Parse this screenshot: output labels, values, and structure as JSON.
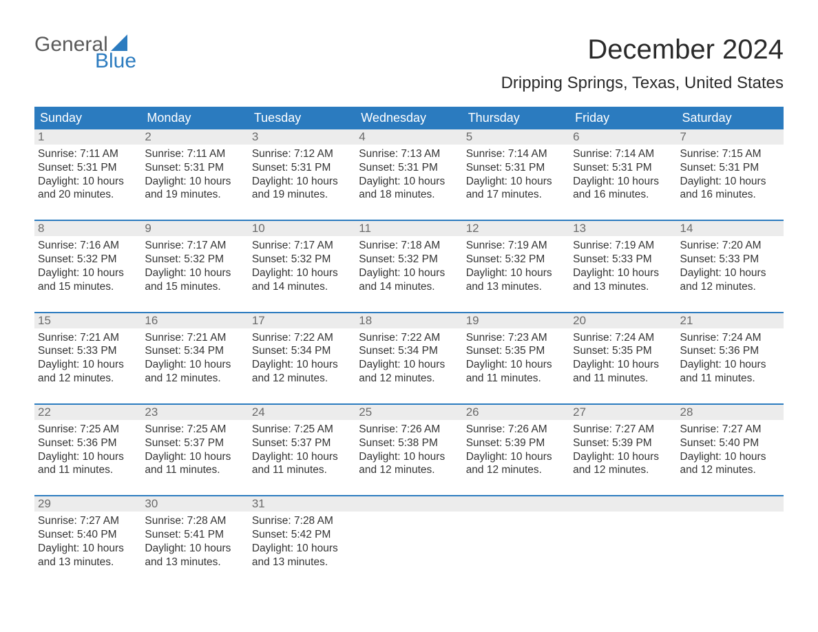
{
  "logo": {
    "top": "General",
    "bottom": "Blue",
    "sail_color": "#2b7bbf"
  },
  "title": "December 2024",
  "subtitle": "Dripping Springs, Texas, United States",
  "colors": {
    "header_bg": "#2b7bbf",
    "header_text": "#ffffff",
    "date_bar_bg": "#ececec",
    "date_text": "#6a6a6a",
    "body_text": "#333333",
    "week_rule": "#2b7bbf",
    "page_bg": "#ffffff"
  },
  "day_names": [
    "Sunday",
    "Monday",
    "Tuesday",
    "Wednesday",
    "Thursday",
    "Friday",
    "Saturday"
  ],
  "weeks": [
    [
      {
        "date": "1",
        "sunrise": "Sunrise: 7:11 AM",
        "sunset": "Sunset: 5:31 PM",
        "daylight1": "Daylight: 10 hours",
        "daylight2": "and 20 minutes."
      },
      {
        "date": "2",
        "sunrise": "Sunrise: 7:11 AM",
        "sunset": "Sunset: 5:31 PM",
        "daylight1": "Daylight: 10 hours",
        "daylight2": "and 19 minutes."
      },
      {
        "date": "3",
        "sunrise": "Sunrise: 7:12 AM",
        "sunset": "Sunset: 5:31 PM",
        "daylight1": "Daylight: 10 hours",
        "daylight2": "and 19 minutes."
      },
      {
        "date": "4",
        "sunrise": "Sunrise: 7:13 AM",
        "sunset": "Sunset: 5:31 PM",
        "daylight1": "Daylight: 10 hours",
        "daylight2": "and 18 minutes."
      },
      {
        "date": "5",
        "sunrise": "Sunrise: 7:14 AM",
        "sunset": "Sunset: 5:31 PM",
        "daylight1": "Daylight: 10 hours",
        "daylight2": "and 17 minutes."
      },
      {
        "date": "6",
        "sunrise": "Sunrise: 7:14 AM",
        "sunset": "Sunset: 5:31 PM",
        "daylight1": "Daylight: 10 hours",
        "daylight2": "and 16 minutes."
      },
      {
        "date": "7",
        "sunrise": "Sunrise: 7:15 AM",
        "sunset": "Sunset: 5:31 PM",
        "daylight1": "Daylight: 10 hours",
        "daylight2": "and 16 minutes."
      }
    ],
    [
      {
        "date": "8",
        "sunrise": "Sunrise: 7:16 AM",
        "sunset": "Sunset: 5:32 PM",
        "daylight1": "Daylight: 10 hours",
        "daylight2": "and 15 minutes."
      },
      {
        "date": "9",
        "sunrise": "Sunrise: 7:17 AM",
        "sunset": "Sunset: 5:32 PM",
        "daylight1": "Daylight: 10 hours",
        "daylight2": "and 15 minutes."
      },
      {
        "date": "10",
        "sunrise": "Sunrise: 7:17 AM",
        "sunset": "Sunset: 5:32 PM",
        "daylight1": "Daylight: 10 hours",
        "daylight2": "and 14 minutes."
      },
      {
        "date": "11",
        "sunrise": "Sunrise: 7:18 AM",
        "sunset": "Sunset: 5:32 PM",
        "daylight1": "Daylight: 10 hours",
        "daylight2": "and 14 minutes."
      },
      {
        "date": "12",
        "sunrise": "Sunrise: 7:19 AM",
        "sunset": "Sunset: 5:32 PM",
        "daylight1": "Daylight: 10 hours",
        "daylight2": "and 13 minutes."
      },
      {
        "date": "13",
        "sunrise": "Sunrise: 7:19 AM",
        "sunset": "Sunset: 5:33 PM",
        "daylight1": "Daylight: 10 hours",
        "daylight2": "and 13 minutes."
      },
      {
        "date": "14",
        "sunrise": "Sunrise: 7:20 AM",
        "sunset": "Sunset: 5:33 PM",
        "daylight1": "Daylight: 10 hours",
        "daylight2": "and 12 minutes."
      }
    ],
    [
      {
        "date": "15",
        "sunrise": "Sunrise: 7:21 AM",
        "sunset": "Sunset: 5:33 PM",
        "daylight1": "Daylight: 10 hours",
        "daylight2": "and 12 minutes."
      },
      {
        "date": "16",
        "sunrise": "Sunrise: 7:21 AM",
        "sunset": "Sunset: 5:34 PM",
        "daylight1": "Daylight: 10 hours",
        "daylight2": "and 12 minutes."
      },
      {
        "date": "17",
        "sunrise": "Sunrise: 7:22 AM",
        "sunset": "Sunset: 5:34 PM",
        "daylight1": "Daylight: 10 hours",
        "daylight2": "and 12 minutes."
      },
      {
        "date": "18",
        "sunrise": "Sunrise: 7:22 AM",
        "sunset": "Sunset: 5:34 PM",
        "daylight1": "Daylight: 10 hours",
        "daylight2": "and 12 minutes."
      },
      {
        "date": "19",
        "sunrise": "Sunrise: 7:23 AM",
        "sunset": "Sunset: 5:35 PM",
        "daylight1": "Daylight: 10 hours",
        "daylight2": "and 11 minutes."
      },
      {
        "date": "20",
        "sunrise": "Sunrise: 7:24 AM",
        "sunset": "Sunset: 5:35 PM",
        "daylight1": "Daylight: 10 hours",
        "daylight2": "and 11 minutes."
      },
      {
        "date": "21",
        "sunrise": "Sunrise: 7:24 AM",
        "sunset": "Sunset: 5:36 PM",
        "daylight1": "Daylight: 10 hours",
        "daylight2": "and 11 minutes."
      }
    ],
    [
      {
        "date": "22",
        "sunrise": "Sunrise: 7:25 AM",
        "sunset": "Sunset: 5:36 PM",
        "daylight1": "Daylight: 10 hours",
        "daylight2": "and 11 minutes."
      },
      {
        "date": "23",
        "sunrise": "Sunrise: 7:25 AM",
        "sunset": "Sunset: 5:37 PM",
        "daylight1": "Daylight: 10 hours",
        "daylight2": "and 11 minutes."
      },
      {
        "date": "24",
        "sunrise": "Sunrise: 7:25 AM",
        "sunset": "Sunset: 5:37 PM",
        "daylight1": "Daylight: 10 hours",
        "daylight2": "and 11 minutes."
      },
      {
        "date": "25",
        "sunrise": "Sunrise: 7:26 AM",
        "sunset": "Sunset: 5:38 PM",
        "daylight1": "Daylight: 10 hours",
        "daylight2": "and 12 minutes."
      },
      {
        "date": "26",
        "sunrise": "Sunrise: 7:26 AM",
        "sunset": "Sunset: 5:39 PM",
        "daylight1": "Daylight: 10 hours",
        "daylight2": "and 12 minutes."
      },
      {
        "date": "27",
        "sunrise": "Sunrise: 7:27 AM",
        "sunset": "Sunset: 5:39 PM",
        "daylight1": "Daylight: 10 hours",
        "daylight2": "and 12 minutes."
      },
      {
        "date": "28",
        "sunrise": "Sunrise: 7:27 AM",
        "sunset": "Sunset: 5:40 PM",
        "daylight1": "Daylight: 10 hours",
        "daylight2": "and 12 minutes."
      }
    ],
    [
      {
        "date": "29",
        "sunrise": "Sunrise: 7:27 AM",
        "sunset": "Sunset: 5:40 PM",
        "daylight1": "Daylight: 10 hours",
        "daylight2": "and 13 minutes."
      },
      {
        "date": "30",
        "sunrise": "Sunrise: 7:28 AM",
        "sunset": "Sunset: 5:41 PM",
        "daylight1": "Daylight: 10 hours",
        "daylight2": "and 13 minutes."
      },
      {
        "date": "31",
        "sunrise": "Sunrise: 7:28 AM",
        "sunset": "Sunset: 5:42 PM",
        "daylight1": "Daylight: 10 hours",
        "daylight2": "and 13 minutes."
      },
      {
        "empty": true
      },
      {
        "empty": true
      },
      {
        "empty": true
      },
      {
        "empty": true
      }
    ]
  ]
}
